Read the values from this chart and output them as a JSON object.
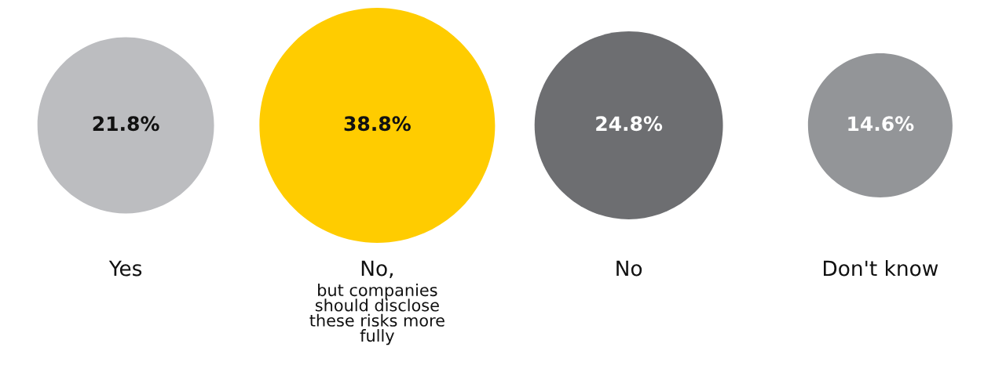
{
  "chart_data": {
    "type": "other",
    "categories": [
      "Yes",
      "No,\nbut companies\nshould disclose\nthese risks more\nfully",
      "No",
      "Don't know"
    ],
    "values": [
      21.8,
      38.8,
      24.8,
      14.6
    ],
    "value_labels": [
      "21.8%",
      "38.8%",
      "24.8%",
      "14.6%"
    ],
    "colors": [
      "#bcbdc0",
      "#ffcc00",
      "#6d6e71",
      "#939598"
    ]
  }
}
